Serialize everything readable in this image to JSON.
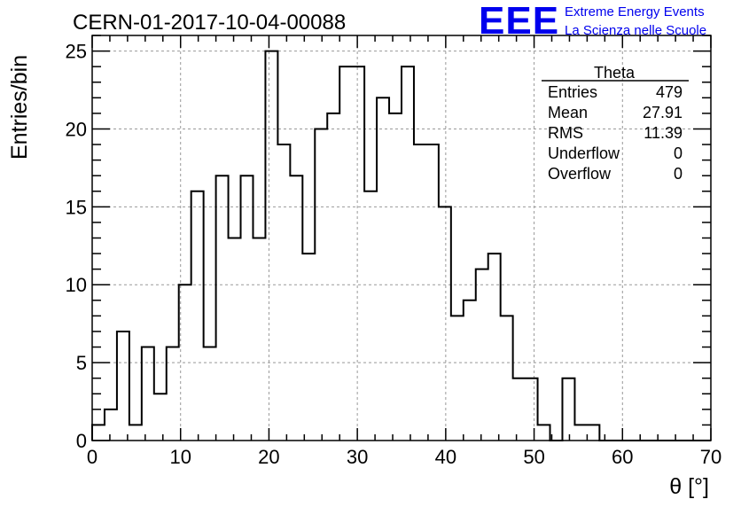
{
  "logo": {
    "mark": "EEE",
    "line1": "Extreme Energy Events",
    "line2": "La Scienza nelle Scuole",
    "color": "#0000ee"
  },
  "stats_box": {
    "title": "Theta",
    "rows": [
      {
        "label": "Entries",
        "value": "479"
      },
      {
        "label": "Mean",
        "value": "27.91"
      },
      {
        "label": "RMS",
        "value": "11.39"
      },
      {
        "label": "Underflow",
        "value": "0"
      },
      {
        "label": "Overflow",
        "value": "0"
      }
    ]
  },
  "chart_data": {
    "type": "bar",
    "title": "CERN-01-2017-10-04-00088",
    "xlabel": "θ [°]",
    "ylabel": "Entries/bin",
    "xlim": [
      0,
      70
    ],
    "ylim": [
      0,
      26
    ],
    "xticks": [
      0,
      10,
      20,
      30,
      40,
      50,
      60,
      70
    ],
    "yticks": [
      0,
      5,
      10,
      15,
      20,
      25
    ],
    "grid": true,
    "bin_width": 1.4,
    "values": [
      1,
      2,
      7,
      1,
      6,
      3,
      6,
      10,
      16,
      6,
      17,
      13,
      17,
      13,
      25,
      19,
      17,
      12,
      20,
      21,
      24,
      24,
      16,
      22,
      21,
      24,
      19,
      19,
      15,
      8,
      9,
      11,
      12,
      8,
      4,
      4,
      1,
      0,
      4,
      1,
      1,
      0,
      0,
      0,
      0,
      0,
      0,
      0,
      0,
      0
    ],
    "line_color": "#000000"
  }
}
